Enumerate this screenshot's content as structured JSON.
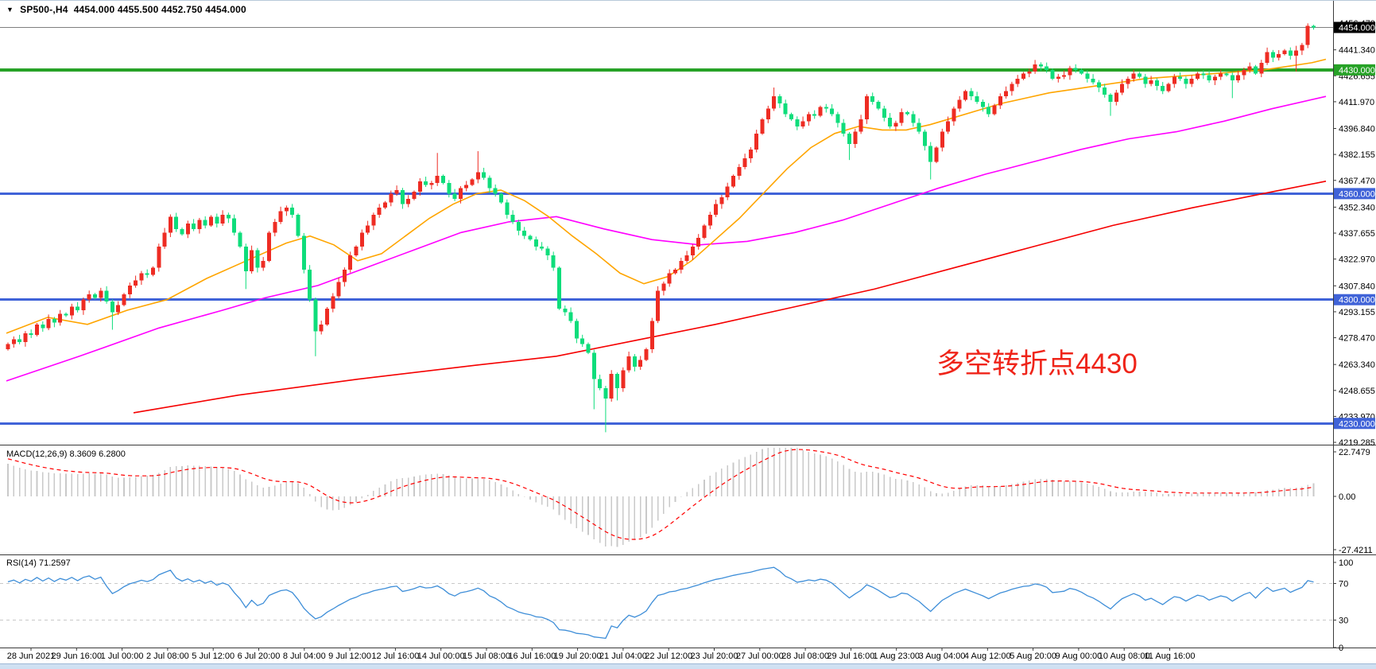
{
  "window": {
    "symbol_period": "SP500-,H4",
    "ohlc_readout": "4454.000 4455.500 4452.750 4454.000"
  },
  "annotation": {
    "text": "多空转折点4430",
    "color": "#ef2419"
  },
  "panels": {
    "macd_label": "MACD(12,26,9) 8.3609 6.2800",
    "rsi_label": "RSI(14) 71.2597"
  },
  "chart_data": {
    "type": "candlestick",
    "symbol": "SP500-",
    "timeframe": "H4",
    "last_bar": {
      "open": "4454.000",
      "high": "4455.500",
      "low": "4452.750",
      "close": "4454.000"
    },
    "colors": {
      "up_candle": "#ee2c23",
      "down_candle": "#0edd7b",
      "ma_fast": "#ffa500",
      "ma_mid": "#ff00ff",
      "ma_slow": "#f50000",
      "hline_blue": "#4063d8",
      "hline_green": "#27a227",
      "price_line": "#808080",
      "macd_hist": "#c9c9c9",
      "macd_signal": "#ff0000",
      "rsi_line": "#3e8ed8",
      "rsi_levels": "#c9c9c9",
      "axis_text": "#000000"
    },
    "price_ticks": [
      "4456.470",
      "4441.340",
      "4426.655",
      "4411.970",
      "4396.840",
      "4382.155",
      "4367.470",
      "4352.340",
      "4337.655",
      "4322.970",
      "4307.840",
      "4293.155",
      "4278.470",
      "4263.340",
      "4248.655",
      "4233.970",
      "4219.285"
    ],
    "hlines": [
      {
        "price": 4454.0,
        "label": "4454.000",
        "line": "#808080",
        "box": "#000000",
        "w": 1
      },
      {
        "price": 4430.0,
        "label": "4430.000",
        "line": "#27a227",
        "box": "#27a227",
        "w": 4
      },
      {
        "price": 4360.0,
        "label": "4360.000",
        "line": "#4063d8",
        "box": "#4063d8",
        "w": 3
      },
      {
        "price": 4300.0,
        "label": "4300.000",
        "line": "#4063d8",
        "box": "#4063d8",
        "w": 3
      },
      {
        "price": 4230.0,
        "label": "4230.000",
        "line": "#4063d8",
        "box": "#4063d8",
        "w": 3
      }
    ],
    "x_labels": [
      "28 Jun 2021",
      "29 Jun 16:00",
      "1 Jul 00:00",
      "2 Jul 08:00",
      "5 Jul 12:00",
      "6 Jul 20:00",
      "8 Jul 04:00",
      "9 Jul 12:00",
      "12 Jul 16:00",
      "14 Jul 00:00",
      "15 Jul 08:00",
      "16 Jul 16:00",
      "19 Jul 20:00",
      "21 Jul 04:00",
      "22 Jul 12:00",
      "23 Jul 20:00",
      "27 Jul 00:00",
      "28 Jul 08:00",
      "29 Jul 16:00",
      "1 Aug 23:00",
      "3 Aug 04:00",
      "4 Aug 12:00",
      "5 Aug 20:00",
      "9 Aug 00:00",
      "10 Aug 08:00",
      "11 Aug 16:00"
    ],
    "open_first": 4272,
    "closes": [
      4275,
      4277.5,
      4276,
      4281,
      4280,
      4286,
      4284,
      4289,
      4287,
      4292,
      4291,
      4296,
      4294,
      4300,
      4303,
      4301,
      4305,
      4299,
      4293,
      4297,
      4303,
      4308,
      4311,
      4315,
      4314,
      4318,
      4330,
      4338,
      4347,
      4340,
      4337,
      4343,
      4340,
      4345,
      4342,
      4347,
      4343,
      4348,
      4346,
      4338,
      4330,
      4316,
      4328,
      4318,
      4322,
      4338,
      4344,
      4350,
      4352,
      4348,
      4336,
      4317,
      4300,
      4282,
      4286,
      4295,
      4302,
      4310,
      4317,
      4325,
      4330,
      4338,
      4342,
      4348,
      4352,
      4355,
      4360,
      4362,
      4354,
      4357,
      4361,
      4367,
      4365,
      4366,
      4370,
      4366,
      4360,
      4357,
      4363,
      4365,
      4368,
      4372,
      4369,
      4363,
      4360,
      4355,
      4348,
      4344,
      4339,
      4336,
      4334,
      4330,
      4329,
      4325,
      4318,
      4295,
      4293,
      4288,
      4278,
      4275,
      4270,
      4255,
      4250,
      4244,
      4258,
      4250,
      4260,
      4268,
      4262,
      4266,
      4272,
      4288,
      4305,
      4309,
      4315,
      4317,
      4322,
      4325,
      4330,
      4335,
      4342,
      4348,
      4354,
      4358,
      4364,
      4370,
      4375,
      4380,
      4385,
      4394,
      4402,
      4408,
      4415,
      4411,
      4405,
      4402,
      4398,
      4401,
      4405,
      4404,
      4409,
      4408,
      4405,
      4400,
      4394,
      4388,
      4395,
      4402,
      4415,
      4412,
      4408,
      4403,
      4398,
      4400,
      4406,
      4405,
      4400,
      4395,
      4387,
      4378,
      4386,
      4395,
      4401,
      4408,
      4413,
      4418,
      4415,
      4412,
      4409,
      4405,
      4410,
      4415,
      4418,
      4422,
      4425,
      4428,
      4429,
      4433,
      4432,
      4430,
      4425,
      4426,
      4427,
      4431,
      4430,
      4428,
      4425,
      4423,
      4420,
      4416,
      4412,
      4417,
      4422,
      4425,
      4428,
      4426,
      4422,
      4424,
      4421,
      4418,
      4422,
      4426,
      4425,
      4422,
      4425,
      4428,
      4427,
      4424,
      4426,
      4428,
      4427,
      4424,
      4427,
      4430,
      4432,
      4428,
      4434,
      4440,
      4437,
      4439,
      4441,
      4438,
      4441,
      4444,
      4455,
      4454
    ],
    "wick_overrides": {
      "18": [
        null,
        4283
      ],
      "41": [
        null,
        4306
      ],
      "53": [
        null,
        4268
      ],
      "74": [
        4383,
        null
      ],
      "81": [
        4384,
        null
      ],
      "101": [
        null,
        4238
      ],
      "103": [
        null,
        4225
      ],
      "105": [
        null,
        4243
      ],
      "132": [
        4420,
        null
      ],
      "145": [
        null,
        4379
      ],
      "159": [
        null,
        4368
      ],
      "190": [
        null,
        4404
      ],
      "211": [
        null,
        4414
      ],
      "222": [
        null,
        4429
      ],
      "224": [
        4456.3,
        null
      ],
      "225": [
        4455.5,
        4452.75
      ]
    },
    "ma_fast_points": [
      [
        8,
        4281
      ],
      [
        60,
        4290
      ],
      [
        110,
        4286
      ],
      [
        160,
        4294
      ],
      [
        210,
        4300
      ],
      [
        260,
        4312
      ],
      [
        310,
        4322
      ],
      [
        360,
        4332
      ],
      [
        390,
        4336
      ],
      [
        420,
        4331
      ],
      [
        450,
        4322
      ],
      [
        480,
        4326
      ],
      [
        510,
        4336
      ],
      [
        540,
        4346
      ],
      [
        570,
        4354
      ],
      [
        600,
        4360
      ],
      [
        630,
        4362
      ],
      [
        660,
        4356
      ],
      [
        690,
        4347
      ],
      [
        720,
        4336
      ],
      [
        750,
        4326
      ],
      [
        780,
        4315
      ],
      [
        810,
        4309
      ],
      [
        840,
        4313
      ],
      [
        870,
        4322
      ],
      [
        900,
        4334
      ],
      [
        930,
        4346
      ],
      [
        960,
        4360
      ],
      [
        990,
        4374
      ],
      [
        1020,
        4386
      ],
      [
        1050,
        4394
      ],
      [
        1080,
        4398
      ],
      [
        1110,
        4396
      ],
      [
        1140,
        4396
      ],
      [
        1170,
        4399
      ],
      [
        1200,
        4403
      ],
      [
        1230,
        4407
      ],
      [
        1260,
        4411
      ],
      [
        1290,
        4414
      ],
      [
        1320,
        4417
      ],
      [
        1350,
        4419
      ],
      [
        1380,
        4421
      ],
      [
        1410,
        4423
      ],
      [
        1440,
        4425
      ],
      [
        1470,
        4426
      ],
      [
        1500,
        4427
      ],
      [
        1530,
        4428
      ],
      [
        1560,
        4429
      ],
      [
        1590,
        4430
      ],
      [
        1620,
        4432
      ],
      [
        1650,
        4434
      ],
      [
        1668,
        4436
      ]
    ],
    "ma_mid_points": [
      [
        8,
        4254
      ],
      [
        100,
        4268
      ],
      [
        200,
        4284
      ],
      [
        280,
        4294
      ],
      [
        333,
        4301
      ],
      [
        400,
        4308
      ],
      [
        460,
        4318
      ],
      [
        520,
        4328
      ],
      [
        580,
        4338
      ],
      [
        640,
        4344
      ],
      [
        700,
        4347
      ],
      [
        760,
        4340
      ],
      [
        820,
        4334
      ],
      [
        880,
        4331
      ],
      [
        940,
        4333
      ],
      [
        1000,
        4338
      ],
      [
        1060,
        4345
      ],
      [
        1120,
        4354
      ],
      [
        1180,
        4363
      ],
      [
        1240,
        4371
      ],
      [
        1300,
        4378
      ],
      [
        1360,
        4385
      ],
      [
        1420,
        4391
      ],
      [
        1480,
        4395
      ],
      [
        1540,
        4401
      ],
      [
        1600,
        4408
      ],
      [
        1668,
        4415
      ]
    ],
    "ma_slow_points": [
      [
        168,
        4236
      ],
      [
        300,
        4246
      ],
      [
        450,
        4255
      ],
      [
        600,
        4263
      ],
      [
        700,
        4268
      ],
      [
        800,
        4277
      ],
      [
        900,
        4286
      ],
      [
        1000,
        4296
      ],
      [
        1100,
        4306
      ],
      [
        1200,
        4318
      ],
      [
        1300,
        4330
      ],
      [
        1400,
        4342
      ],
      [
        1500,
        4352
      ],
      [
        1600,
        4361
      ],
      [
        1668,
        4367
      ]
    ],
    "macd": {
      "params": [
        12,
        26,
        9
      ],
      "ticks": [
        "22.7479",
        "0.00",
        "-27.4211"
      ],
      "current": "8.3609 6.2800"
    },
    "rsi": {
      "period": 14,
      "ticks": [
        "100",
        "70",
        "30",
        "0"
      ],
      "levels": [
        70,
        30
      ],
      "current": 71.2597
    }
  }
}
